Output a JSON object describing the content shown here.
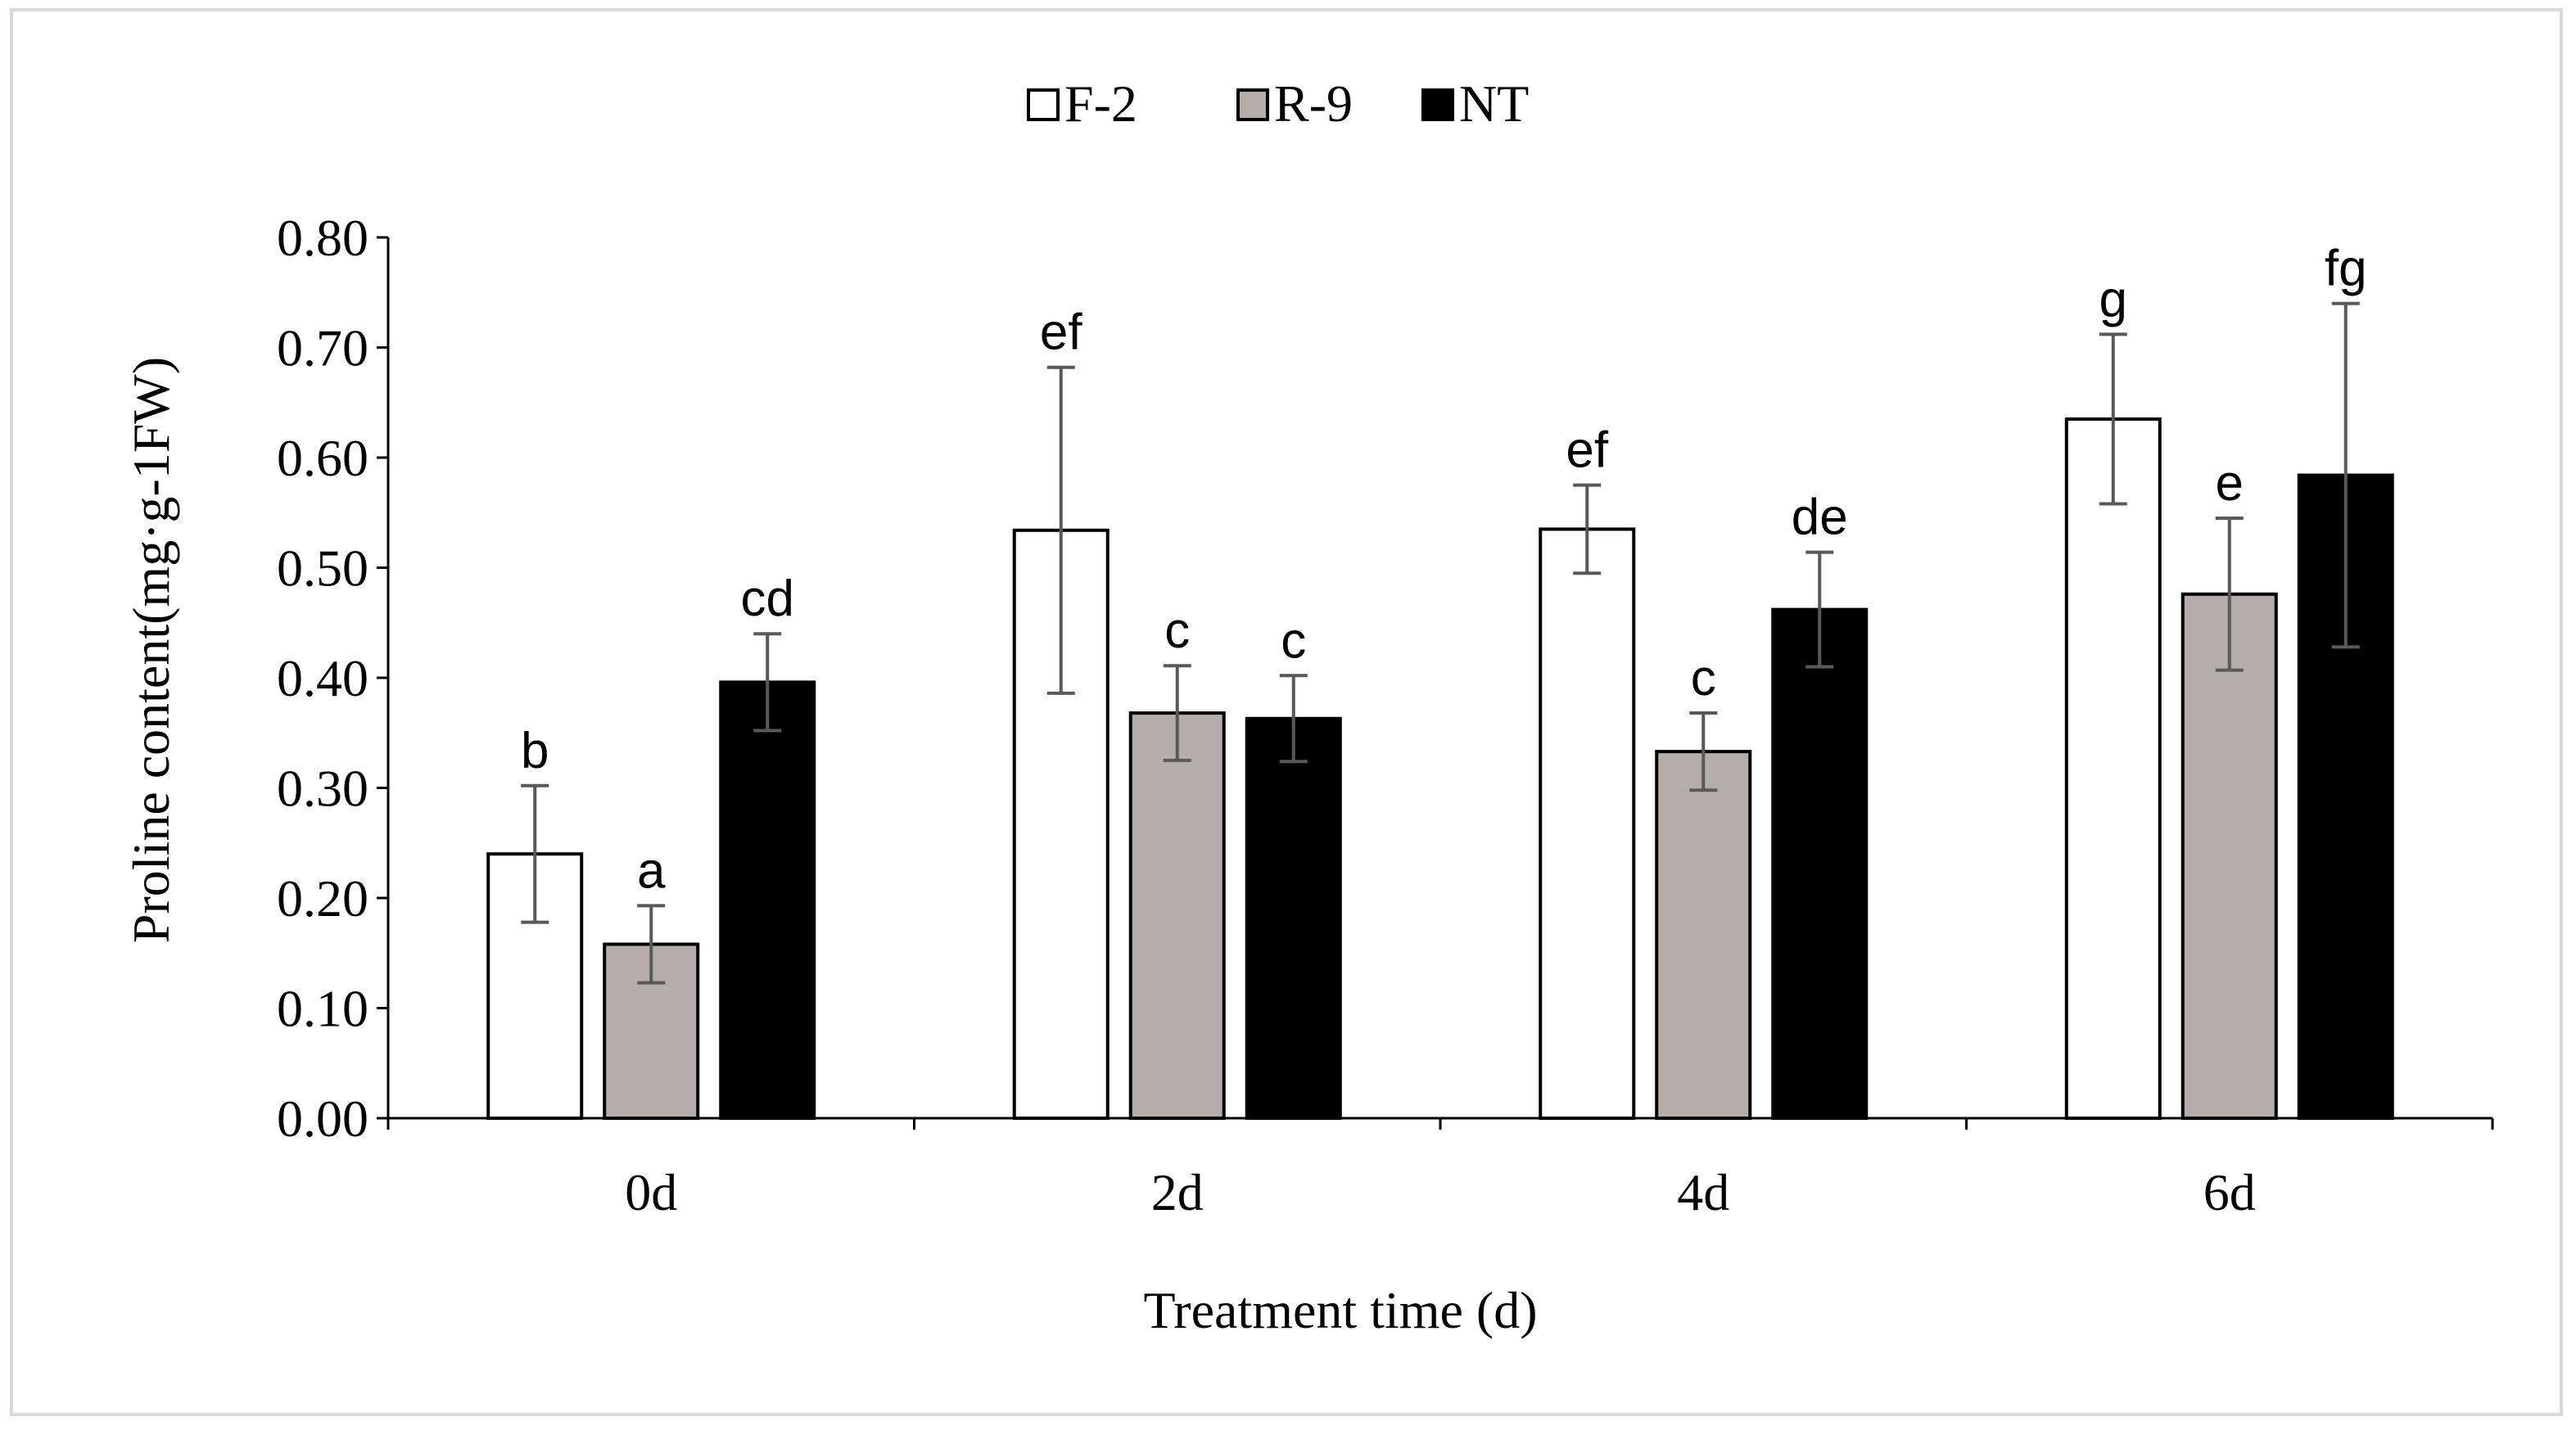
{
  "chart_data": {
    "type": "bar",
    "title": "",
    "xlabel": "Treatment time (d)",
    "ylabel": "Proline content(mg·g-1FW)",
    "categories": [
      "0d",
      "2d",
      "4d",
      "6d"
    ],
    "ylim": [
      0,
      0.8
    ],
    "yticks": [
      "0.00",
      "0.10",
      "0.20",
      "0.30",
      "0.40",
      "0.50",
      "0.60",
      "0.70",
      "0.80"
    ],
    "legend_position": "top-center",
    "series": [
      {
        "name": "F-2",
        "color": "#ffffff",
        "values": [
          0.24,
          0.534,
          0.535,
          0.635
        ],
        "errors": [
          0.062,
          0.148,
          0.04,
          0.077
        ],
        "letters": [
          "b",
          "ef",
          "ef",
          "g"
        ]
      },
      {
        "name": "R-9",
        "color": "#b3aeab",
        "values": [
          0.158,
          0.368,
          0.333,
          0.476
        ],
        "errors": [
          0.035,
          0.043,
          0.035,
          0.069
        ],
        "letters": [
          "a",
          "c",
          "c",
          "e"
        ]
      },
      {
        "name": "NT",
        "color": "#000000",
        "values": [
          0.396,
          0.363,
          0.462,
          0.584
        ],
        "errors": [
          0.044,
          0.039,
          0.052,
          0.156
        ],
        "letters": [
          "cd",
          "c",
          "de",
          "fg"
        ]
      }
    ]
  }
}
